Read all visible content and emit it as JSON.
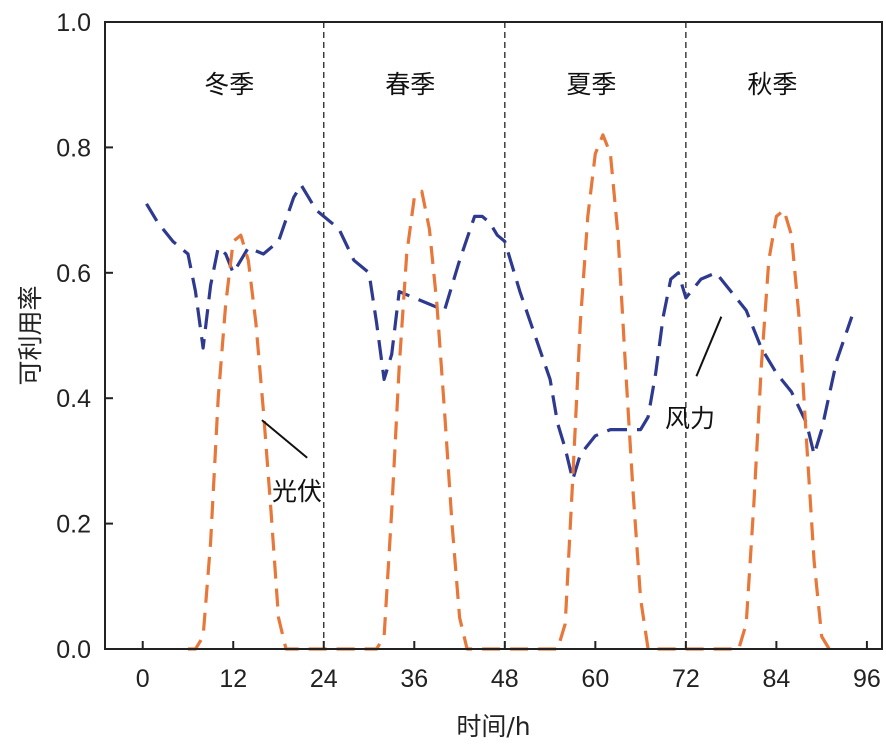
{
  "chart_data": {
    "type": "line",
    "xlabel": "时间/h",
    "ylabel": "可利用率",
    "xlim": [
      -5,
      98
    ],
    "ylim": [
      0,
      1.0
    ],
    "x_ticks": [
      0,
      12,
      24,
      36,
      48,
      60,
      72,
      84,
      96
    ],
    "y_ticks": [
      0.0,
      0.2,
      0.4,
      0.6,
      0.8,
      1.0
    ],
    "y_tick_labels": [
      "0.0",
      "0.2",
      "0.4",
      "0.6",
      "0.8",
      "1.0"
    ],
    "separators": [
      24,
      48,
      72
    ],
    "season_labels": [
      {
        "text": "冬季",
        "x": 12
      },
      {
        "text": "春季",
        "x": 36
      },
      {
        "text": "夏季",
        "x": 60
      },
      {
        "text": "秋季",
        "x": 84
      }
    ],
    "annotations": [
      {
        "text": "光伏",
        "series": "pv"
      },
      {
        "text": "风力",
        "series": "wind"
      }
    ],
    "series": [
      {
        "id": "wind",
        "color": "#2e3a8f",
        "dash": "dashed",
        "x": [
          0.5,
          2,
          4,
          6,
          7,
          8,
          9,
          10,
          11,
          12,
          13,
          14,
          16,
          18,
          20,
          21,
          22,
          23,
          24,
          26,
          28,
          30,
          31,
          32,
          33,
          34,
          36,
          38,
          40,
          42,
          44,
          45,
          46,
          47,
          48,
          50,
          52,
          54,
          55,
          56,
          57,
          58,
          60,
          62,
          64,
          65,
          66,
          67,
          68,
          69,
          70,
          71,
          72,
          74,
          76,
          78,
          80,
          82,
          84,
          86,
          88,
          89,
          90,
          92,
          94
        ],
        "y": [
          0.71,
          0.68,
          0.65,
          0.63,
          0.57,
          0.48,
          0.58,
          0.64,
          0.63,
          0.6,
          0.62,
          0.64,
          0.63,
          0.65,
          0.72,
          0.74,
          0.72,
          0.7,
          0.69,
          0.67,
          0.62,
          0.6,
          0.52,
          0.43,
          0.47,
          0.57,
          0.56,
          0.55,
          0.54,
          0.62,
          0.69,
          0.69,
          0.68,
          0.66,
          0.65,
          0.57,
          0.5,
          0.43,
          0.36,
          0.32,
          0.27,
          0.31,
          0.34,
          0.35,
          0.35,
          0.35,
          0.35,
          0.37,
          0.44,
          0.53,
          0.59,
          0.6,
          0.56,
          0.59,
          0.6,
          0.57,
          0.54,
          0.48,
          0.44,
          0.41,
          0.36,
          0.31,
          0.35,
          0.46,
          0.53
        ]
      },
      {
        "id": "pv",
        "color": "#e8773a",
        "dash": "dashed",
        "x": [
          6,
          7,
          8,
          9,
          10,
          11,
          12,
          13,
          14,
          15,
          16,
          17,
          18,
          19,
          30,
          31,
          32,
          33,
          34,
          35,
          36,
          37,
          38,
          39,
          40,
          41,
          42,
          43,
          54,
          55,
          56,
          57,
          58,
          59,
          60,
          61,
          62,
          63,
          64,
          65,
          66,
          67,
          78,
          79,
          80,
          81,
          82,
          83,
          84,
          85,
          86,
          87,
          88,
          89,
          90,
          91
        ],
        "y": [
          0.0,
          0.0,
          0.02,
          0.17,
          0.4,
          0.55,
          0.65,
          0.66,
          0.62,
          0.52,
          0.38,
          0.22,
          0.05,
          0.0,
          0.0,
          0.0,
          0.02,
          0.22,
          0.45,
          0.63,
          0.72,
          0.73,
          0.67,
          0.55,
          0.38,
          0.2,
          0.05,
          0.0,
          0.0,
          0.0,
          0.04,
          0.27,
          0.52,
          0.69,
          0.79,
          0.82,
          0.79,
          0.66,
          0.45,
          0.25,
          0.08,
          0.0,
          0.0,
          0.0,
          0.04,
          0.23,
          0.45,
          0.62,
          0.69,
          0.7,
          0.66,
          0.53,
          0.33,
          0.14,
          0.02,
          0.0
        ]
      }
    ]
  }
}
